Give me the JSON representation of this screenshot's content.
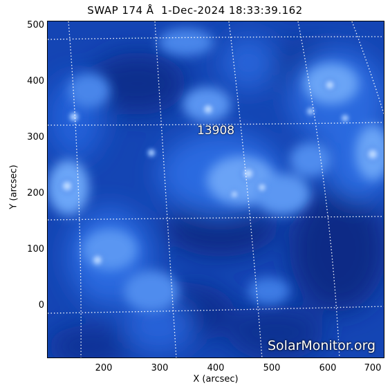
{
  "title": "SWAP 174 Å  1-Dec-2024 18:33:39.162",
  "axes": {
    "xlabel": "X (arcsec)",
    "ylabel": "Y (arcsec)",
    "xticks": [
      "200",
      "300",
      "400",
      "500",
      "600",
      "700"
    ],
    "yticks": [
      "500",
      "400",
      "300",
      "200",
      "100",
      "0"
    ]
  },
  "active_region": "13908",
  "watermark": "SolarMonitor.org",
  "colors": {
    "background": "#ffffff",
    "sun_dark": "#0d2f8f",
    "sun_mid": "#1f5fd6",
    "sun_bright": "#cfe8ff",
    "grid": "#ffffff"
  }
}
